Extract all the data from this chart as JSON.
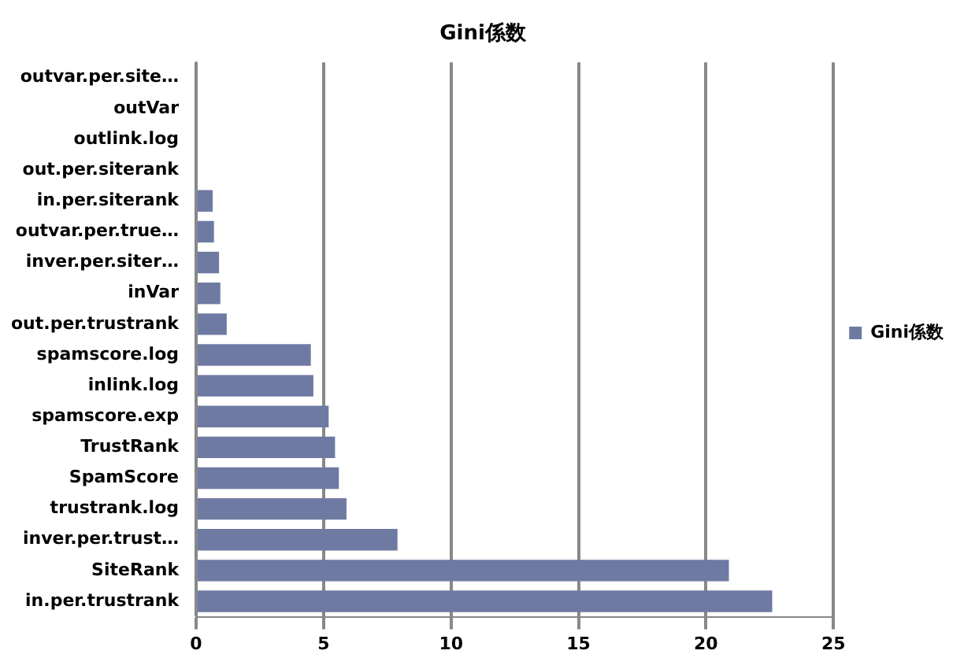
{
  "chart_data": {
    "type": "bar",
    "orientation": "horizontal",
    "title": "Gini係数",
    "categories": [
      "outvar.per.site…",
      "outVar",
      "outlink.log",
      "out.per.siterank",
      "in.per.siterank",
      "outvar.per.true…",
      "inver.per.siter…",
      "inVar",
      "out.per.trustrank",
      "spamscore.log",
      "inlink.log",
      "spamscore.exp",
      "TrustRank",
      "SpamScore",
      "trustrank.log",
      "inver.per.trust…",
      "SiteRank",
      "in.per.trustrank"
    ],
    "series": [
      {
        "name": "Gini係数",
        "color": "#6f7aa3",
        "values": [
          0,
          0,
          0,
          0,
          0.65,
          0.7,
          0.9,
          0.95,
          1.2,
          4.5,
          4.6,
          5.2,
          5.45,
          5.6,
          5.9,
          7.9,
          20.9,
          22.6
        ]
      }
    ],
    "xlim": [
      0,
      25
    ],
    "xticks": [
      0,
      5,
      10,
      15,
      20,
      25
    ],
    "grid": "x",
    "legend": "right"
  }
}
